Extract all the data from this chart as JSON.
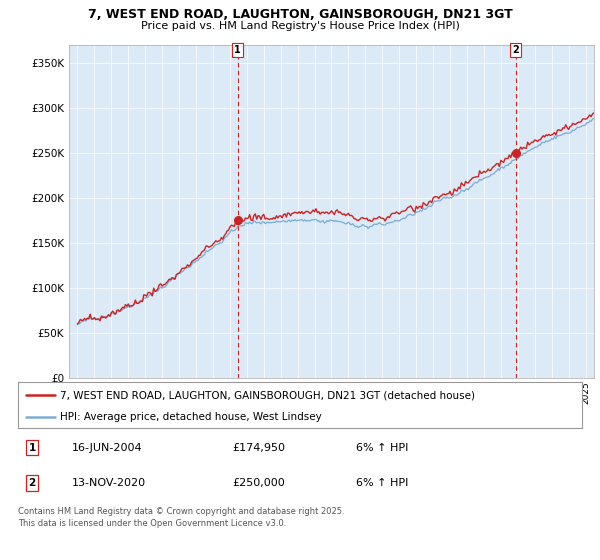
{
  "title_line1": "7, WEST END ROAD, LAUGHTON, GAINSBOROUGH, DN21 3GT",
  "title_line2": "Price paid vs. HM Land Registry's House Price Index (HPI)",
  "bg_color": "#dce9f7",
  "hpi_color": "#7aadd4",
  "price_color": "#cc2222",
  "marker_color": "#cc2222",
  "vline_color": "#cc2222",
  "purchase1_date_num": 2004.46,
  "purchase1_price": 174950,
  "purchase2_date_num": 2020.87,
  "purchase2_price": 250000,
  "ylim_min": 0,
  "ylim_max": 370000,
  "xlim_min": 1994.5,
  "xlim_max": 2025.5,
  "legend_label_price": "7, WEST END ROAD, LAUGHTON, GAINSBOROUGH, DN21 3GT (detached house)",
  "legend_label_hpi": "HPI: Average price, detached house, West Lindsey",
  "footnote": "Contains HM Land Registry data © Crown copyright and database right 2025.\nThis data is licensed under the Open Government Licence v3.0.",
  "ytick_labels": [
    "£0",
    "£50K",
    "£100K",
    "£150K",
    "£200K",
    "£250K",
    "£300K",
    "£350K"
  ],
  "ytick_values": [
    0,
    50000,
    100000,
    150000,
    200000,
    250000,
    300000,
    350000
  ]
}
